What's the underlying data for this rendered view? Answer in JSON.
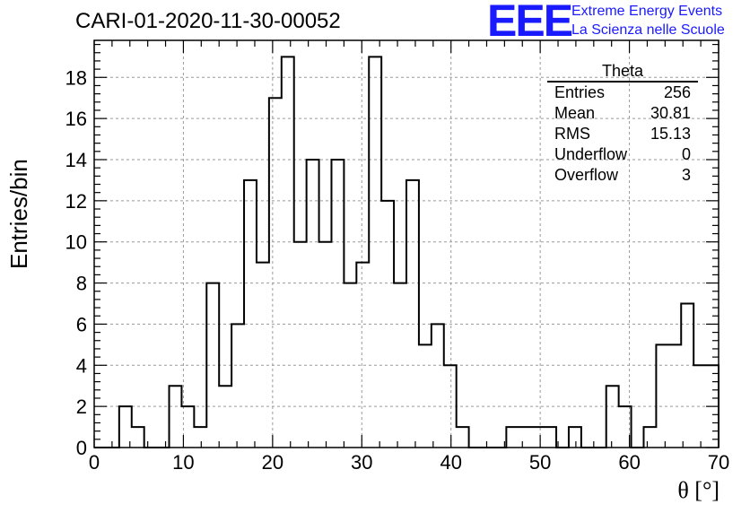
{
  "header": {
    "title": "CARI-01-2020-11-30-00052",
    "logo_text": "EEE",
    "logo_line1": "Extreme Energy Events",
    "logo_line2": "La Scienza nelle Scuole",
    "logo_color": "#1a1aff"
  },
  "stats": {
    "title": "Theta",
    "rows": [
      {
        "label": "Entries",
        "value": "256"
      },
      {
        "label": "Mean",
        "value": "30.81"
      },
      {
        "label": "RMS",
        "value": "15.13"
      },
      {
        "label": "Underflow",
        "value": "0"
      },
      {
        "label": "Overflow",
        "value": "3"
      }
    ]
  },
  "chart_data": {
    "type": "bar",
    "style": "step-histogram",
    "title": "CARI-01-2020-11-30-00052",
    "xlabel": "θ [°]",
    "ylabel": "Entries/bin",
    "xlim": [
      0,
      70
    ],
    "ylim": [
      0,
      19.8
    ],
    "bin_width": 1.4,
    "grid": true,
    "x_ticks": [
      0,
      10,
      20,
      30,
      40,
      50,
      60,
      70
    ],
    "y_ticks": [
      0,
      2,
      4,
      6,
      8,
      10,
      12,
      14,
      16,
      18
    ],
    "bin_edges_start": 0,
    "values": [
      0,
      0,
      2,
      1,
      0,
      0,
      3,
      2,
      1,
      8,
      3,
      6,
      13,
      9,
      17,
      19,
      10,
      14,
      10,
      14,
      8,
      9,
      19,
      12,
      8,
      13,
      5,
      6,
      4,
      1,
      0,
      0,
      0,
      1,
      1,
      1,
      1,
      0,
      1,
      0,
      0,
      3,
      2,
      0,
      1,
      5,
      5,
      7,
      4,
      4
    ]
  }
}
